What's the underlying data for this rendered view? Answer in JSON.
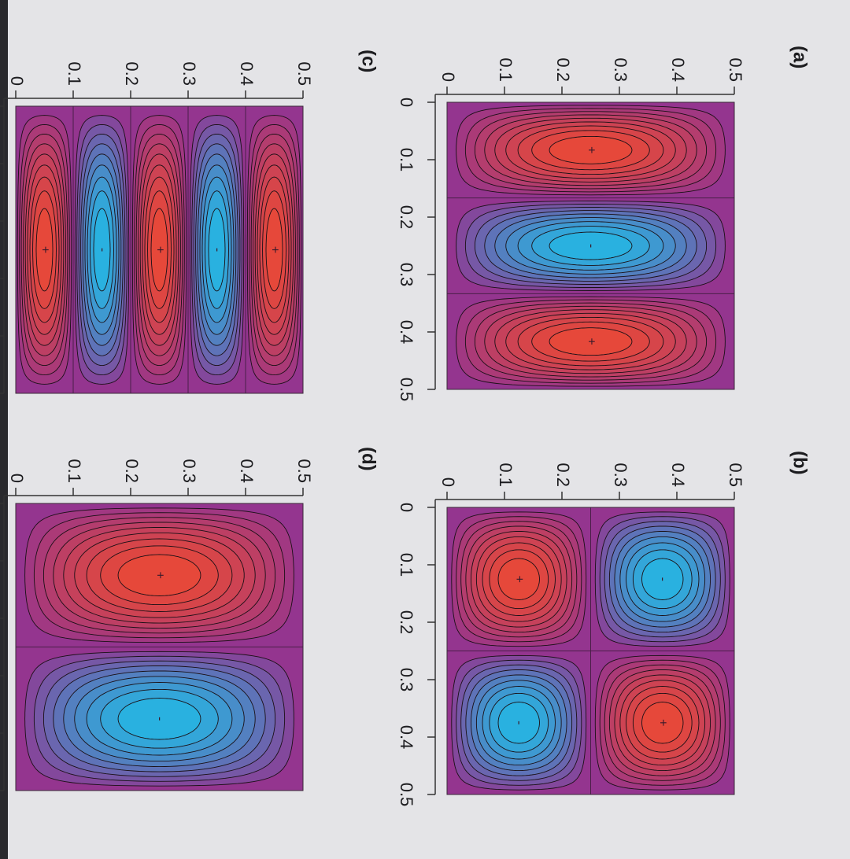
{
  "chart_data": [
    {
      "type": "contour",
      "title": "(a)",
      "nx": 3,
      "ny": 1,
      "annotations": [
        "+",
        "-",
        "+"
      ],
      "xlim": [
        0,
        0.5
      ],
      "ylim": [
        0,
        0.5
      ],
      "xticks": [
        0,
        0.1,
        0.2,
        0.3,
        0.4,
        0.5
      ],
      "yticks": [
        0,
        0.1,
        0.2,
        0.3,
        0.4,
        0.5
      ]
    },
    {
      "type": "contour",
      "title": "(b)",
      "nx": 2,
      "ny": 2,
      "annotations": [
        "+",
        "-",
        "-",
        "+"
      ],
      "xlim": [
        0,
        0.5
      ],
      "ylim": [
        0,
        0.5
      ],
      "xticks": [
        0,
        0.1,
        0.2,
        0.3,
        0.4,
        0.5
      ],
      "yticks": [
        0,
        0.1,
        0.2,
        0.3,
        0.4,
        0.5
      ]
    },
    {
      "type": "contour",
      "title": "(c)",
      "nx": 1,
      "ny": 5,
      "annotations": [
        "+",
        "-",
        "+",
        "-",
        "+"
      ],
      "xlim": [
        0,
        0.5
      ],
      "ylim": [
        0,
        0.5
      ],
      "xticks": [
        0,
        0.1,
        0.2,
        0.3,
        0.4,
        0.5
      ],
      "yticks": [
        0,
        0.1,
        0.2,
        0.3,
        0.4,
        0.5
      ]
    },
    {
      "type": "contour",
      "title": "(d)",
      "nx": 2,
      "ny": 1,
      "annotations": [
        "+",
        "-"
      ],
      "xlim": [
        0,
        0.5
      ],
      "ylim": [
        0,
        0.5
      ],
      "xticks": [
        0,
        0.1,
        0.2,
        0.3,
        0.4,
        0.5
      ],
      "yticks": [
        0,
        0.1,
        0.2,
        0.3,
        0.4,
        0.5
      ]
    }
  ]
}
